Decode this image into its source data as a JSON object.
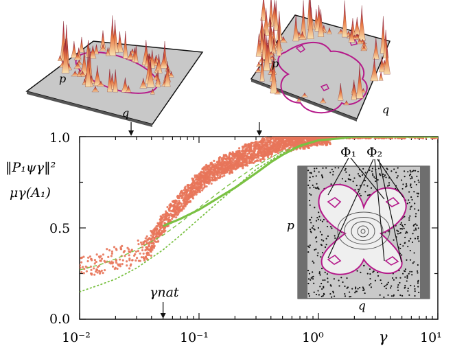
{
  "chart_data": {
    "type": "scatter",
    "xscale": "log",
    "xlim": [
      0.01,
      10
    ],
    "ylim": [
      0,
      1.0
    ],
    "xlabel": "γ",
    "y_labels": [
      "‖P₁ψγ‖²",
      "μγ(A₁)"
    ],
    "x_ticks": [
      "10⁻²",
      "10⁻¹",
      "10⁰",
      "10¹"
    ],
    "y_ticks": [
      "0.0",
      "0.5",
      "1.0"
    ],
    "annotation_gamma_nat": {
      "label": "γnat",
      "x": 0.05
    },
    "top_panel_arrows_x": [
      0.027,
      0.32
    ],
    "series": [
      {
        "name": "‖P₁ψγ‖² (eigenstates)",
        "kind": "scatter",
        "color": "#e8765a",
        "x": [
          0.012,
          0.015,
          0.018,
          0.022,
          0.028,
          0.035,
          0.04,
          0.045,
          0.05,
          0.055,
          0.06,
          0.07,
          0.08,
          0.09,
          0.1,
          0.12,
          0.15,
          0.2,
          0.25,
          0.3,
          0.4,
          0.5,
          0.7,
          1.0
        ],
        "y": [
          0.3,
          0.31,
          0.32,
          0.33,
          0.35,
          0.38,
          0.42,
          0.48,
          0.52,
          0.56,
          0.6,
          0.64,
          0.68,
          0.72,
          0.75,
          0.79,
          0.83,
          0.87,
          0.9,
          0.92,
          0.95,
          0.97,
          0.98,
          0.99
        ]
      },
      {
        "name": "μγ(A₁)",
        "kind": "line",
        "color": "#7ac143",
        "x": [
          0.05,
          0.07,
          0.1,
          0.15,
          0.2,
          0.3,
          0.4,
          0.5,
          0.7,
          1.0,
          1.5,
          2,
          3,
          5,
          10
        ],
        "y": [
          0.51,
          0.55,
          0.6,
          0.67,
          0.72,
          0.8,
          0.86,
          0.9,
          0.95,
          0.98,
          0.99,
          1.0,
          1.0,
          1.0,
          1.0
        ]
      },
      {
        "name": "dashed reference",
        "kind": "dashed",
        "color": "#7ac143",
        "x": [
          0.01,
          0.015,
          0.02,
          0.03,
          0.05,
          0.07,
          0.1,
          0.15,
          0.2,
          0.3,
          0.5,
          1.0
        ],
        "y": [
          0.27,
          0.3,
          0.33,
          0.38,
          0.46,
          0.53,
          0.61,
          0.7,
          0.76,
          0.84,
          0.92,
          0.98
        ]
      },
      {
        "name": "dotted reference",
        "kind": "dotted",
        "color": "#7ac143",
        "x": [
          0.01,
          0.015,
          0.02,
          0.03,
          0.05,
          0.07,
          0.1,
          0.15,
          0.2,
          0.3,
          0.5,
          1.0
        ],
        "y": [
          0.15,
          0.19,
          0.22,
          0.28,
          0.38,
          0.46,
          0.55,
          0.65,
          0.72,
          0.82,
          0.91,
          0.98
        ]
      }
    ]
  },
  "inset": {
    "labels": {
      "phi1": "Φ₁",
      "phi2": "Φ₂",
      "p": "p",
      "q": "q"
    },
    "colors": {
      "boundary": "#b5198a",
      "background": "#c9c9c9",
      "sidebar": "#6e6e6e"
    }
  },
  "top_panels": {
    "left": {
      "p": "p",
      "q": "q"
    },
    "right": {
      "p": "p",
      "q": "q"
    },
    "colors": {
      "plane": "#c8c8c8",
      "peak_top": "#8b0040",
      "peak_mid": "#d9603b",
      "peak_base": "#f6d9a3",
      "curve": "#b5198a"
    }
  }
}
